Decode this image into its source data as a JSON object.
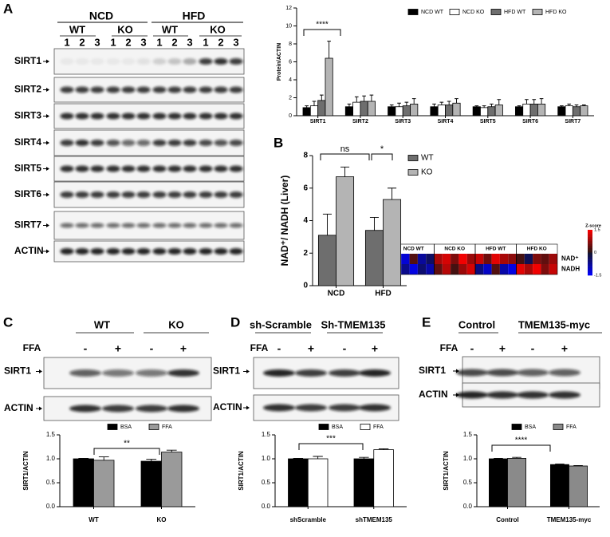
{
  "panel_labels": [
    "A",
    "B",
    "C",
    "D",
    "E"
  ],
  "blot_a": {
    "groups": [
      "NCD",
      "HFD"
    ],
    "genotypes": [
      "WT",
      "KO",
      "WT",
      "KO"
    ],
    "lanes": [
      "1",
      "2",
      "3",
      "1",
      "2",
      "3",
      "1",
      "2",
      "3",
      "1",
      "2",
      "3"
    ],
    "proteins": [
      "SIRT1",
      "SIRT2",
      "SIRT3",
      "SIRT4",
      "SIRT5",
      "SIRT6",
      "SIRT7",
      "ACTIN"
    ]
  },
  "blot_c": {
    "groups": [
      "WT",
      "KO"
    ],
    "treatment_label": "FFA",
    "treatments": [
      "-",
      "+",
      "-",
      "+"
    ],
    "proteins": [
      "SIRT1",
      "ACTIN"
    ]
  },
  "blot_d": {
    "groups": [
      "sh-Scramble",
      "Sh-TMEM135"
    ],
    "treatment_label": "FFA",
    "treatments": [
      "-",
      "+",
      "-",
      "+"
    ],
    "proteins": [
      "SIRT1",
      "ACTIN"
    ]
  },
  "blot_e": {
    "groups": [
      "Control",
      "TMEM135-myc"
    ],
    "treatment_label": "FFA",
    "treatments": [
      "-",
      "+",
      "-",
      "+"
    ],
    "proteins": [
      "SIRT1",
      "ACTIN"
    ]
  },
  "heatmap": {
    "columns": [
      "NCD WT",
      "NCD KO",
      "HFD WT",
      "HFD KO"
    ],
    "rows": [
      "NAD⁺",
      "NADH"
    ],
    "scale_title": "Z-score",
    "scale_ticks": [
      1.5,
      0,
      -1.5
    ],
    "values": [
      [
        -0.6,
        -1.2,
        0.3,
        -0.8,
        -0.4,
        0.9,
        1.2,
        0.6,
        1.4,
        0.8,
        1.1,
        0.5,
        1.3,
        0.9,
        0.7,
        0.2,
        -0.3,
        0.6,
        0.4,
        0.8
      ],
      [
        -1.0,
        -0.7,
        -1.3,
        -0.5,
        -0.9,
        0.4,
        1.0,
        0.2,
        0.8,
        1.2,
        -0.6,
        -1.1,
        0.3,
        -0.9,
        -1.3,
        1.3,
        0.9,
        1.4,
        0.6,
        1.1
      ]
    ]
  },
  "chart_data": [
    {
      "type": "bar",
      "y_label": "Protein/ACTIN",
      "categories": [
        "SIRT1",
        "SIRT2",
        "SIRT3",
        "SIRT4",
        "SIRT5",
        "SIRT6",
        "SIRT7"
      ],
      "series": [
        {
          "name": "NCD WT",
          "color": "#000000",
          "values": [
            0.9,
            1.0,
            1.0,
            1.0,
            1.0,
            1.0,
            1.0
          ],
          "errors": [
            0.2,
            0.3,
            0.2,
            0.3,
            0.1,
            0.1,
            0.1
          ]
        },
        {
          "name": "NCD KO",
          "color": "#ffffff",
          "values": [
            1.1,
            1.5,
            1.0,
            1.2,
            0.9,
            1.3,
            1.1
          ],
          "errors": [
            0.5,
            0.6,
            0.4,
            0.3,
            0.2,
            0.5,
            0.2
          ]
        },
        {
          "name": "HFD WT",
          "color": "#6e6e6e",
          "values": [
            1.7,
            1.6,
            1.1,
            1.2,
            1.0,
            1.3,
            1.0
          ],
          "errors": [
            0.6,
            0.6,
            0.4,
            0.4,
            0.3,
            0.5,
            0.2
          ]
        },
        {
          "name": "HFD KO",
          "color": "#b4b4b4",
          "values": [
            6.4,
            1.6,
            1.3,
            1.4,
            1.2,
            1.3,
            1.1
          ],
          "errors": [
            1.9,
            0.7,
            0.6,
            0.5,
            0.6,
            0.6,
            0.1
          ]
        }
      ],
      "ylim": [
        0,
        12
      ],
      "yticks": [
        0,
        2,
        4,
        6,
        8,
        10,
        12
      ],
      "annotations": [
        "****"
      ]
    },
    {
      "type": "bar",
      "y_label": "NAD⁺/ NADH (Liver)",
      "categories": [
        "NCD",
        "HFD"
      ],
      "series": [
        {
          "name": "WT",
          "color": "#6e6e6e",
          "values": [
            3.1,
            3.4
          ],
          "errors": [
            1.3,
            0.8
          ]
        },
        {
          "name": "KO",
          "color": "#b4b4b4",
          "values": [
            6.7,
            5.3
          ],
          "errors": [
            0.6,
            0.7
          ]
        }
      ],
      "ylim": [
        0,
        8
      ],
      "yticks": [
        0,
        2,
        4,
        6,
        8
      ],
      "annotations": [
        "ns",
        "*"
      ]
    },
    {
      "type": "bar",
      "y_label": "SIRT1/ACTIN",
      "categories": [
        "WT",
        "KO"
      ],
      "series": [
        {
          "name": "BSA",
          "color": "#000000",
          "values": [
            1.0,
            0.95
          ],
          "errors": [
            0.01,
            0.04
          ]
        },
        {
          "name": "FFA",
          "color": "#9a9a9a",
          "values": [
            0.97,
            1.14
          ],
          "errors": [
            0.07,
            0.04
          ]
        }
      ],
      "ylim": [
        0,
        1.5
      ],
      "yticks": [
        {
          "value": 0,
          "label": "0.0"
        },
        {
          "value": 0.5,
          "label": "0.5"
        },
        {
          "value": 1,
          "label": "1.0"
        },
        {
          "value": 1.5,
          "label": "1.5"
        }
      ],
      "annotations": [
        "**"
      ]
    },
    {
      "type": "bar",
      "y_label": "SIRT1/ACTIN",
      "categories": [
        "shScramble",
        "shTMEM135"
      ],
      "series": [
        {
          "name": "BSA",
          "color": "#000000",
          "values": [
            1.0,
            1.0
          ],
          "errors": [
            0.01,
            0.03
          ]
        },
        {
          "name": "FFA",
          "color": "#ffffff",
          "values": [
            1.0,
            1.19
          ],
          "errors": [
            0.05,
            0.02
          ]
        }
      ],
      "ylim": [
        0,
        1.5
      ],
      "yticks": [
        {
          "value": 0,
          "label": "0.0"
        },
        {
          "value": 0.5,
          "label": "0.5"
        },
        {
          "value": 1,
          "label": "1.0"
        },
        {
          "value": 1.5,
          "label": "1.5"
        }
      ],
      "annotations": [
        "***"
      ]
    },
    {
      "type": "bar",
      "y_label": "SIRT1/ACTIN",
      "categories": [
        "Control",
        "TMEM135-myc"
      ],
      "series": [
        {
          "name": "BSA",
          "color": "#000000",
          "values": [
            1.0,
            0.88
          ],
          "errors": [
            0.01,
            0.01
          ]
        },
        {
          "name": "FFA",
          "color": "#8a8a8a",
          "values": [
            1.01,
            0.85
          ],
          "errors": [
            0.02,
            0.01
          ]
        }
      ],
      "ylim": [
        0,
        1.5
      ],
      "yticks": [
        {
          "value": 0,
          "label": "0.0"
        },
        {
          "value": 0.5,
          "label": "0.5"
        },
        {
          "value": 1,
          "label": "1.0"
        },
        {
          "value": 1.5,
          "label": "1.5"
        }
      ],
      "annotations": [
        "****"
      ]
    }
  ]
}
